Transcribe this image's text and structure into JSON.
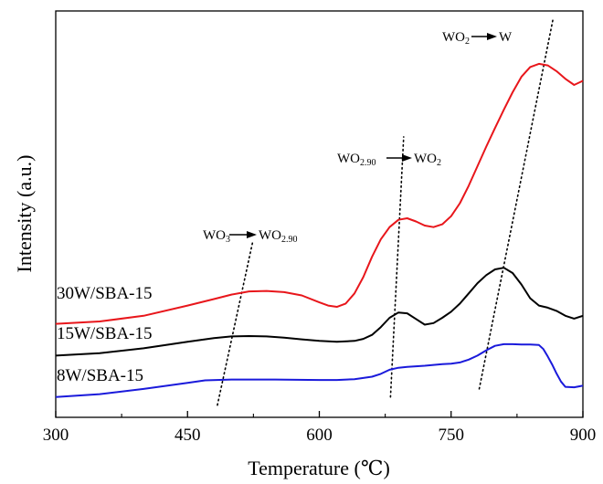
{
  "chart_data": {
    "type": "line",
    "xlabel": "Temperature (℃)",
    "ylabel": "Intensity (a.u.)",
    "xlim": [
      300,
      900
    ],
    "xticks": [
      300,
      450,
      600,
      750,
      900
    ],
    "yticks_shown": false,
    "grid": false,
    "legend": "none",
    "series": [
      {
        "name": "30W/SBA-15",
        "color": "#e8161b",
        "x": [
          300,
          350,
          400,
          450,
          480,
          500,
          520,
          540,
          560,
          580,
          600,
          610,
          620,
          630,
          640,
          650,
          660,
          670,
          680,
          690,
          700,
          710,
          720,
          730,
          740,
          750,
          760,
          770,
          780,
          790,
          800,
          810,
          820,
          830,
          840,
          850,
          860,
          870,
          880,
          890,
          900
        ],
        "y": [
          0.23,
          0.236,
          0.25,
          0.275,
          0.291,
          0.302,
          0.31,
          0.311,
          0.308,
          0.3,
          0.283,
          0.275,
          0.272,
          0.28,
          0.305,
          0.345,
          0.395,
          0.438,
          0.468,
          0.486,
          0.49,
          0.482,
          0.472,
          0.468,
          0.475,
          0.495,
          0.527,
          0.57,
          0.618,
          0.666,
          0.712,
          0.757,
          0.8,
          0.838,
          0.862,
          0.87,
          0.866,
          0.852,
          0.833,
          0.818,
          0.828
        ]
      },
      {
        "name": "15W/SBA-15",
        "color": "#000000",
        "x": [
          300,
          350,
          400,
          450,
          480,
          500,
          520,
          540,
          560,
          580,
          600,
          620,
          640,
          650,
          660,
          670,
          680,
          690,
          700,
          710,
          720,
          730,
          740,
          750,
          760,
          770,
          780,
          790,
          800,
          810,
          820,
          830,
          840,
          850,
          860,
          870,
          880,
          890,
          900
        ],
        "y": [
          0.152,
          0.158,
          0.17,
          0.186,
          0.195,
          0.199,
          0.2,
          0.199,
          0.196,
          0.192,
          0.188,
          0.186,
          0.188,
          0.193,
          0.203,
          0.222,
          0.245,
          0.258,
          0.256,
          0.242,
          0.228,
          0.232,
          0.245,
          0.26,
          0.28,
          0.305,
          0.33,
          0.35,
          0.364,
          0.368,
          0.355,
          0.327,
          0.293,
          0.275,
          0.27,
          0.262,
          0.25,
          0.243,
          0.25
        ]
      },
      {
        "name": "8W/SBA-15",
        "color": "#1a1adb",
        "x": [
          300,
          350,
          400,
          450,
          470,
          500,
          550,
          600,
          620,
          640,
          660,
          670,
          680,
          690,
          700,
          720,
          740,
          750,
          760,
          770,
          780,
          790,
          800,
          810,
          820,
          830,
          840,
          850,
          855,
          860,
          865,
          870,
          875,
          880,
          890,
          900
        ],
        "y": [
          0.05,
          0.057,
          0.07,
          0.085,
          0.091,
          0.093,
          0.093,
          0.092,
          0.092,
          0.094,
          0.1,
          0.107,
          0.117,
          0.122,
          0.124,
          0.127,
          0.131,
          0.132,
          0.135,
          0.142,
          0.152,
          0.165,
          0.176,
          0.18,
          0.18,
          0.179,
          0.179,
          0.178,
          0.168,
          0.15,
          0.13,
          0.108,
          0.088,
          0.075,
          0.074,
          0.078
        ]
      }
    ],
    "annotations": [
      {
        "main1": "WO",
        "sub1": "3",
        "main2": "WO",
        "sub2": "2.90"
      },
      {
        "main1": "WO",
        "sub1": "2.90",
        "main2": "WO",
        "sub2": "2"
      },
      {
        "main1": "WO",
        "sub1": "2",
        "main2": "W",
        "sub2": ""
      }
    ]
  }
}
